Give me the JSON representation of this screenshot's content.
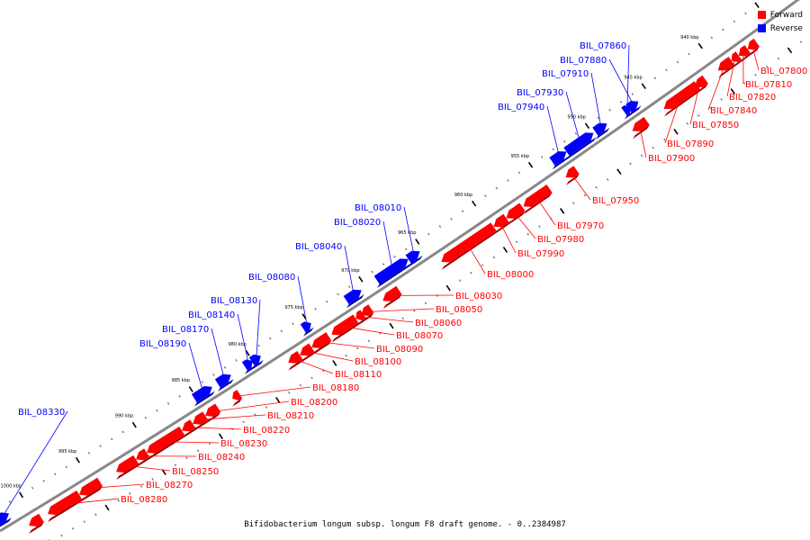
{
  "legend": {
    "forward_label": "Forward",
    "reverse_label": "Reverse",
    "forward_color": "#ff0000",
    "reverse_color": "#0000ff"
  },
  "caption": "Bifidobacterium longum subsp. longum F8 draft genome. - 0..2384987",
  "ticks": [
    {
      "label": "940 kbp",
      "kbp": 940
    },
    {
      "label": "945 kbp",
      "kbp": 945
    },
    {
      "label": "950 kbp",
      "kbp": 950
    },
    {
      "label": "955 kbp",
      "kbp": 955
    },
    {
      "label": "960 kbp",
      "kbp": 960
    },
    {
      "label": "965 kbp",
      "kbp": 965
    },
    {
      "label": "970 kbp",
      "kbp": 970
    },
    {
      "label": "975 kbp",
      "kbp": 975
    },
    {
      "label": "980 kbp",
      "kbp": 980
    },
    {
      "label": "985 kbp",
      "kbp": 985
    },
    {
      "label": "990 kbp",
      "kbp": 990
    },
    {
      "label": "995 kbp",
      "kbp": 995
    },
    {
      "label": "1000 kbp",
      "kbp": 1000
    }
  ],
  "genes": [
    {
      "name": "BIL_07800",
      "strand": "forward"
    },
    {
      "name": "BIL_07810",
      "strand": "forward"
    },
    {
      "name": "BIL_07820",
      "strand": "forward"
    },
    {
      "name": "BIL_07840",
      "strand": "forward"
    },
    {
      "name": "BIL_07850",
      "strand": "forward"
    },
    {
      "name": "BIL_07860",
      "strand": "reverse"
    },
    {
      "name": "BIL_07880",
      "strand": "reverse"
    },
    {
      "name": "BIL_07890",
      "strand": "forward"
    },
    {
      "name": "BIL_07900",
      "strand": "forward"
    },
    {
      "name": "BIL_07910",
      "strand": "reverse"
    },
    {
      "name": "BIL_07930",
      "strand": "reverse"
    },
    {
      "name": "BIL_07940",
      "strand": "reverse"
    },
    {
      "name": "BIL_07950",
      "strand": "forward"
    },
    {
      "name": "BIL_07970",
      "strand": "forward"
    },
    {
      "name": "BIL_07980",
      "strand": "forward"
    },
    {
      "name": "BIL_07990",
      "strand": "forward"
    },
    {
      "name": "BIL_08000",
      "strand": "forward"
    },
    {
      "name": "BIL_08010",
      "strand": "reverse"
    },
    {
      "name": "BIL_08020",
      "strand": "reverse"
    },
    {
      "name": "BIL_08030",
      "strand": "forward"
    },
    {
      "name": "BIL_08040",
      "strand": "reverse"
    },
    {
      "name": "BIL_08050",
      "strand": "forward"
    },
    {
      "name": "BIL_08060",
      "strand": "forward"
    },
    {
      "name": "BIL_08070",
      "strand": "forward"
    },
    {
      "name": "BIL_08080",
      "strand": "reverse"
    },
    {
      "name": "BIL_08090",
      "strand": "forward"
    },
    {
      "name": "BIL_08100",
      "strand": "forward"
    },
    {
      "name": "BIL_08110",
      "strand": "forward"
    },
    {
      "name": "BIL_08130",
      "strand": "reverse"
    },
    {
      "name": "BIL_08140",
      "strand": "reverse"
    },
    {
      "name": "BIL_08170",
      "strand": "reverse"
    },
    {
      "name": "BIL_08180",
      "strand": "forward"
    },
    {
      "name": "BIL_08190",
      "strand": "reverse"
    },
    {
      "name": "BIL_08200",
      "strand": "forward"
    },
    {
      "name": "BIL_08210",
      "strand": "forward"
    },
    {
      "name": "BIL_08220",
      "strand": "forward"
    },
    {
      "name": "BIL_08230",
      "strand": "forward"
    },
    {
      "name": "BIL_08240",
      "strand": "forward"
    },
    {
      "name": "BIL_08250",
      "strand": "forward"
    },
    {
      "name": "BIL_08270",
      "strand": "forward"
    },
    {
      "name": "BIL_08280",
      "strand": "forward"
    },
    {
      "name": "BIL_08330",
      "strand": "reverse"
    }
  ]
}
